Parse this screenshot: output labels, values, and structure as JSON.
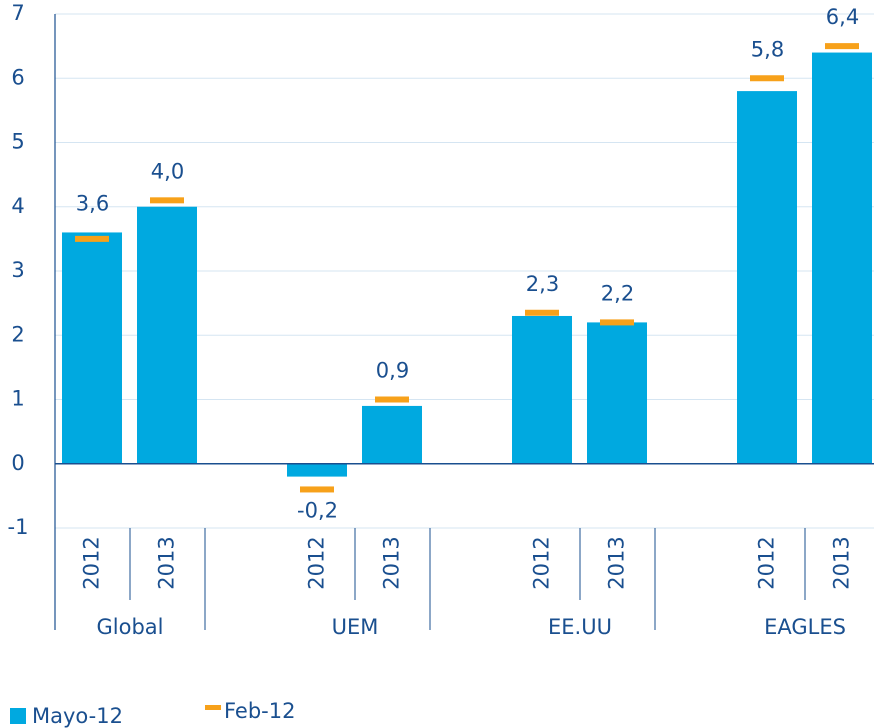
{
  "chart_data": {
    "type": "bar",
    "categories": [
      "2012",
      "2013",
      "2012",
      "2013",
      "2012",
      "2013",
      "2012",
      "2013"
    ],
    "groups": [
      "Global",
      "UEM",
      "EE.UU",
      "EAGLES"
    ],
    "series": [
      {
        "name": "Mayo-12",
        "color": "#00a9e0",
        "values": [
          3.6,
          4.0,
          -0.2,
          0.9,
          2.3,
          2.2,
          5.8,
          6.4
        ],
        "value_labels": [
          "3,6",
          "4,0",
          "-0,2",
          "0,9",
          "2,3",
          "2,2",
          "5,8",
          "6,4"
        ]
      },
      {
        "name": "Feb-12",
        "color": "#f7a11a",
        "values": [
          3.5,
          4.1,
          -0.4,
          1.0,
          2.35,
          2.2,
          6.0,
          6.5
        ]
      }
    ],
    "ylim": [
      -1,
      7
    ],
    "yticks": [
      -1,
      0,
      1,
      2,
      3,
      4,
      5,
      6,
      7
    ],
    "grid": true
  }
}
